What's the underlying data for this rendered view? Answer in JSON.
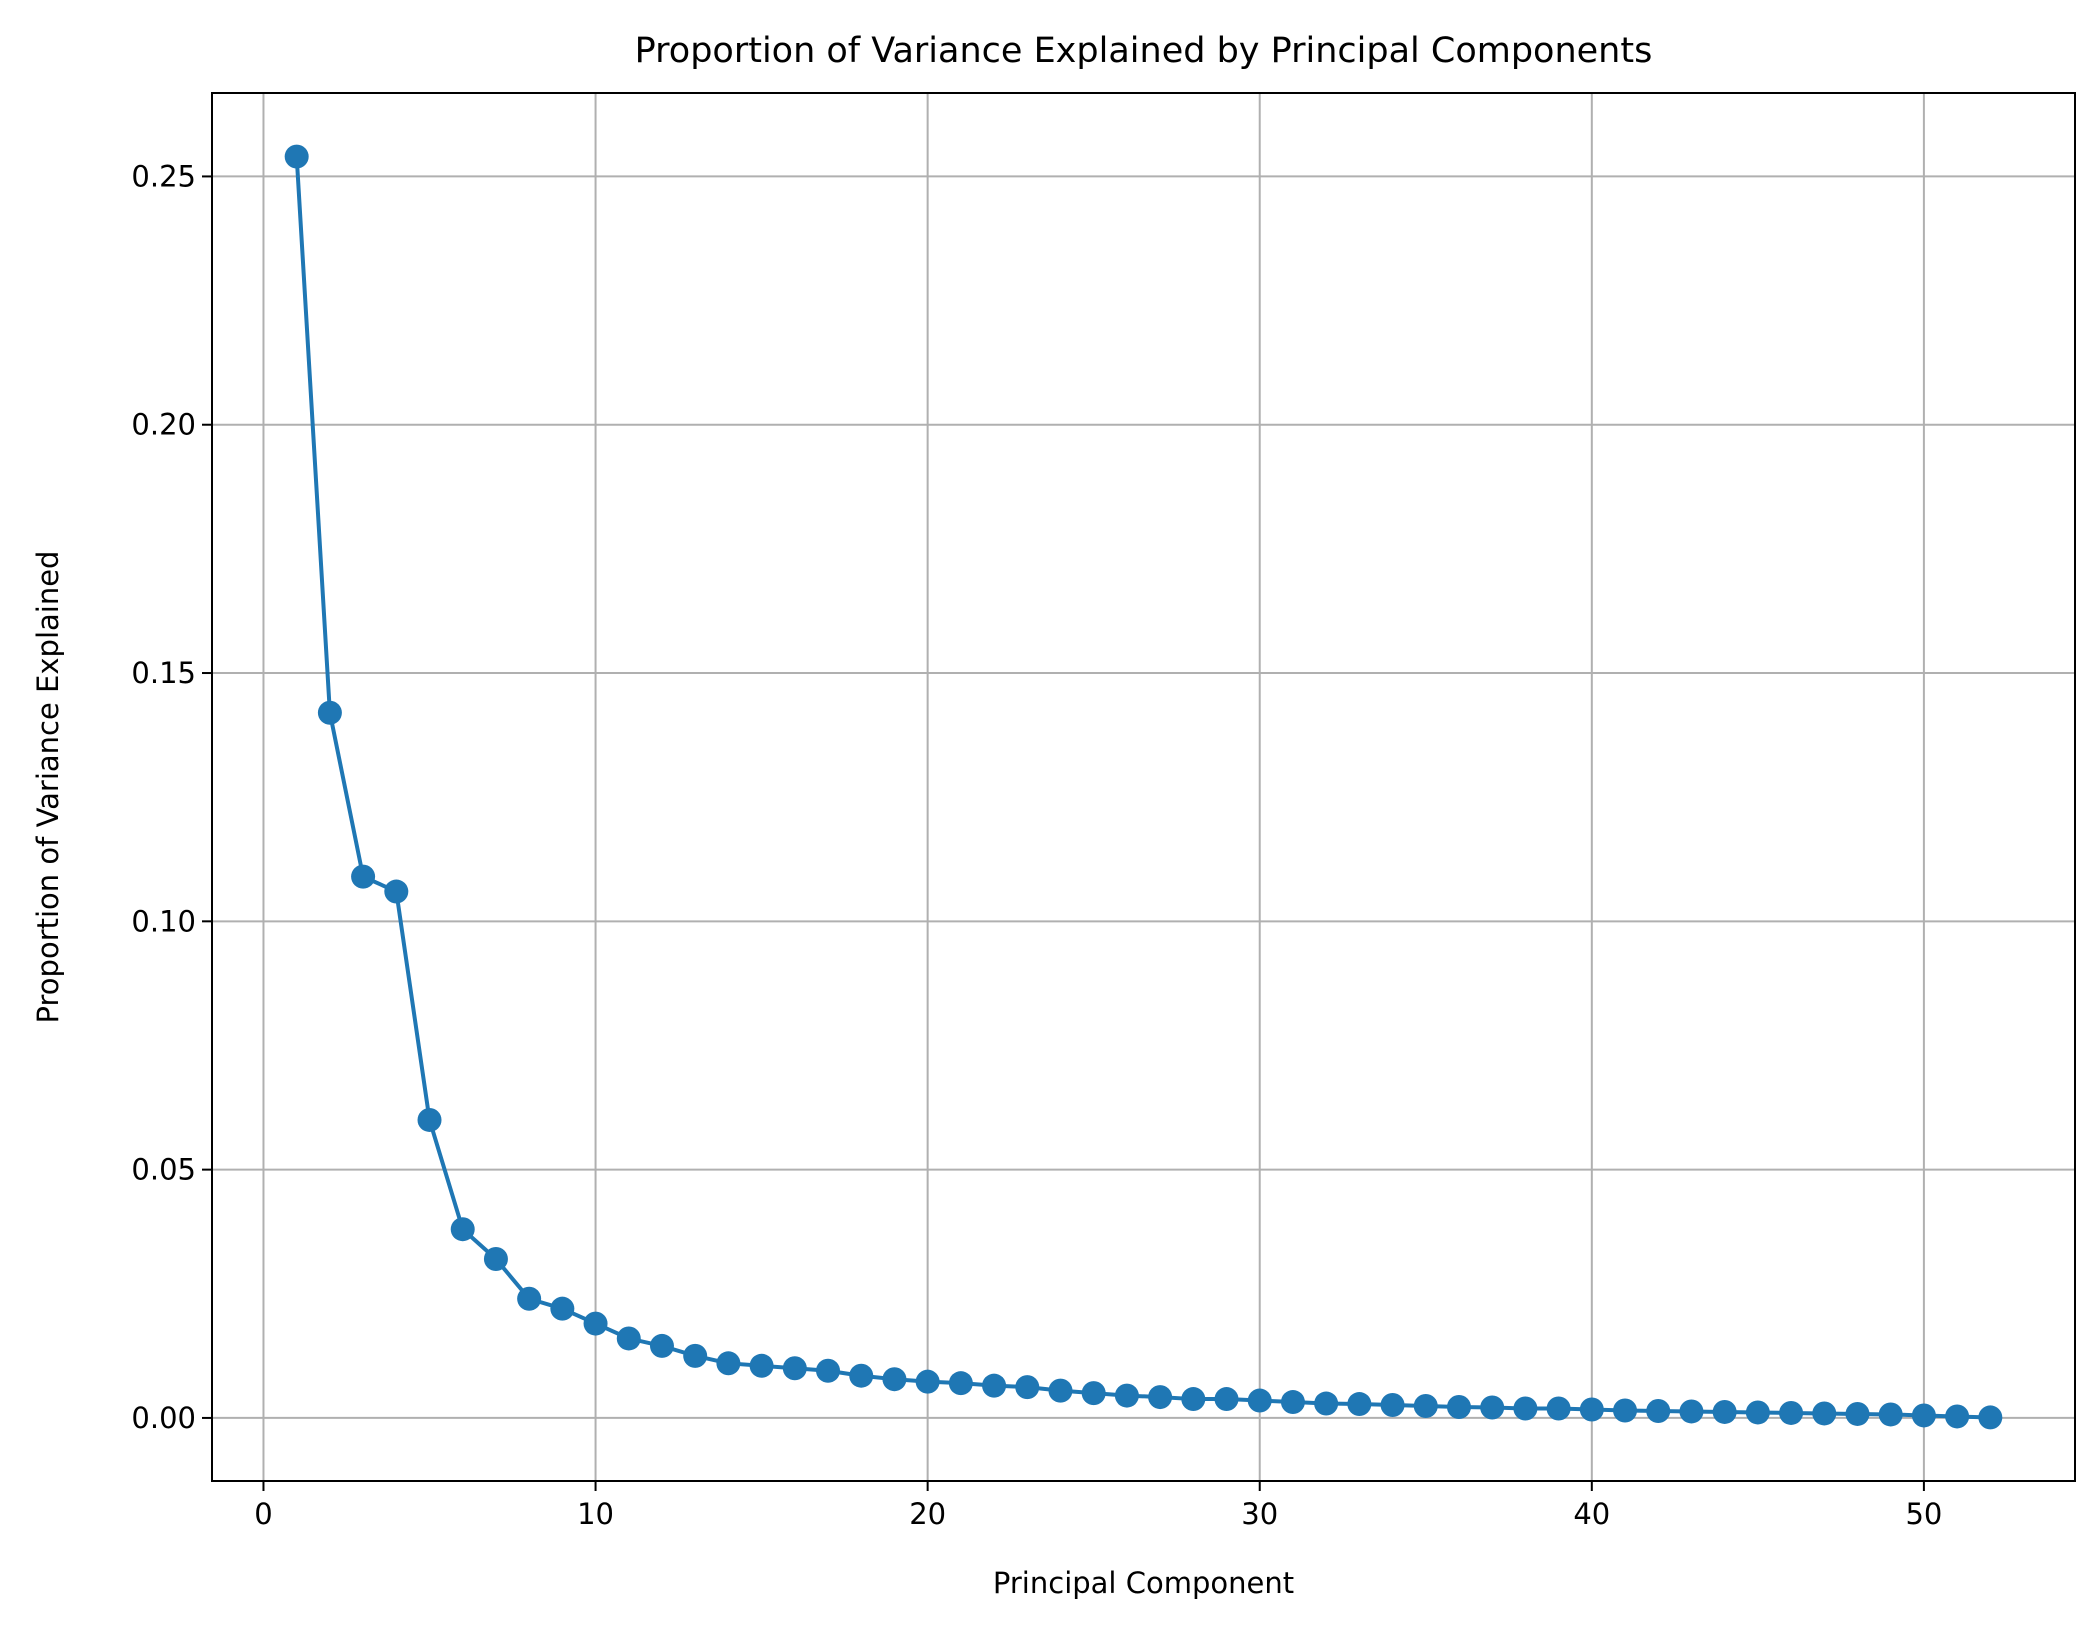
{
  "chart_data": {
    "type": "line",
    "title": "Proportion of Variance Explained by Principal Components",
    "xlabel": "Principal Component",
    "ylabel": "Proportion of Variance Explained",
    "xlim": [
      -1.55,
      54.55
    ],
    "ylim": [
      -0.0127,
      0.2668
    ],
    "xticks": [
      0,
      10,
      20,
      30,
      40,
      50
    ],
    "xtick_labels": [
      "0",
      "10",
      "20",
      "30",
      "40",
      "50"
    ],
    "yticks": [
      0.0,
      0.05,
      0.1,
      0.15,
      0.2,
      0.25
    ],
    "ytick_labels": [
      "0.00",
      "0.05",
      "0.10",
      "0.15",
      "0.20",
      "0.25"
    ],
    "grid": true,
    "legend": "none",
    "color": "#1f77b4",
    "marker": "circle",
    "series": [
      {
        "x": [
          1,
          2,
          3,
          4,
          5,
          6,
          7,
          8,
          9,
          10,
          11,
          12,
          13,
          14,
          15,
          16,
          17,
          18,
          19,
          20,
          21,
          22,
          23,
          24,
          25,
          26,
          27,
          28,
          29,
          30,
          31,
          32,
          33,
          34,
          35,
          36,
          37,
          38,
          39,
          40,
          41,
          42,
          43,
          44,
          45,
          46,
          47,
          48,
          49,
          50,
          51,
          52
        ],
        "values": [
          0.254,
          0.142,
          0.109,
          0.106,
          0.06,
          0.038,
          0.032,
          0.024,
          0.022,
          0.019,
          0.016,
          0.0145,
          0.0125,
          0.011,
          0.0105,
          0.01,
          0.0095,
          0.0085,
          0.0078,
          0.0073,
          0.007,
          0.0065,
          0.0062,
          0.0055,
          0.005,
          0.0045,
          0.0042,
          0.0038,
          0.0038,
          0.0035,
          0.0032,
          0.0029,
          0.0028,
          0.0026,
          0.0024,
          0.0022,
          0.0021,
          0.0019,
          0.0019,
          0.0017,
          0.0015,
          0.0014,
          0.0013,
          0.0012,
          0.0011,
          0.001,
          0.0009,
          0.0008,
          0.0007,
          0.0005,
          0.0003,
          0.0001
        ]
      }
    ]
  }
}
